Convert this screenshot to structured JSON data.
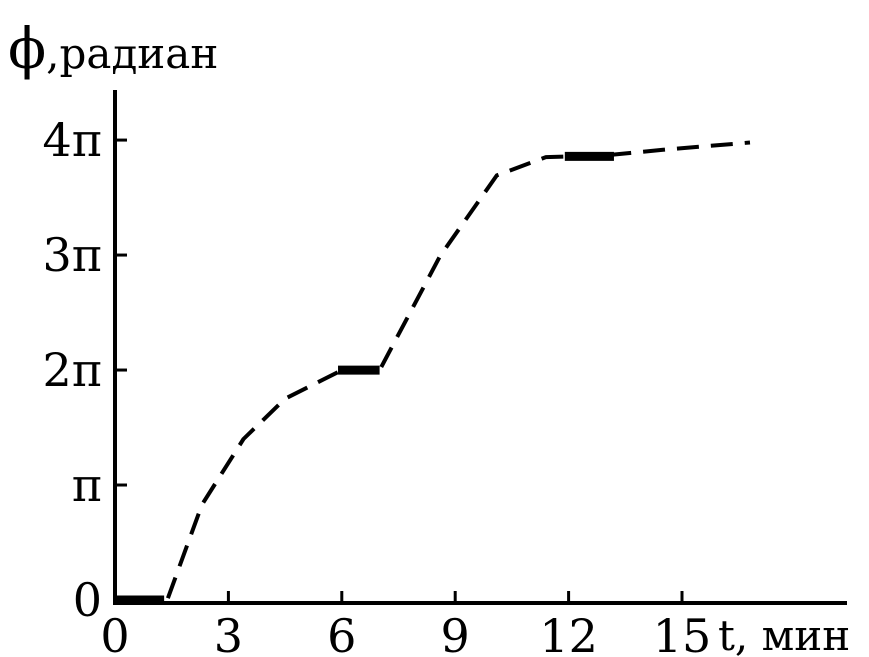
{
  "chart_data": {
    "type": "line",
    "ylabel_symbol": "ϕ",
    "ylabel_unit": ",радиан",
    "xlabel": "t, мин",
    "xlim": [
      0,
      19
    ],
    "ylim": [
      0,
      14.4
    ],
    "grid": false,
    "x_ticks": [
      {
        "value": 0,
        "label": "0"
      },
      {
        "value": 3,
        "label": "3"
      },
      {
        "value": 6,
        "label": "6"
      },
      {
        "value": 9,
        "label": "9"
      },
      {
        "value": 12,
        "label": "12"
      },
      {
        "value": 15,
        "label": "15"
      }
    ],
    "y_ticks": [
      {
        "value": 0,
        "label": "0"
      },
      {
        "value": 3.1416,
        "label": "π"
      },
      {
        "value": 6.2832,
        "label": "2π"
      },
      {
        "value": 9.4248,
        "label": "3π"
      },
      {
        "value": 12.5664,
        "label": "4π"
      }
    ],
    "series": [
      {
        "style": "dashed",
        "color": "#000000",
        "x": [
          1.4,
          2.3,
          3.4,
          4.5,
          6.0,
          7.0,
          8.6,
          10.1,
          11.4,
          13.0,
          14.5,
          16.8
        ],
        "y": [
          0.05,
          2.6,
          4.4,
          5.5,
          6.28,
          6.28,
          9.4,
          11.6,
          12.1,
          12.15,
          12.3,
          12.5
        ]
      }
    ],
    "plateaus": [
      {
        "x": [
          0,
          1.3
        ],
        "y": 0.0
      },
      {
        "x": [
          5.9,
          7.0
        ],
        "y": 6.28
      },
      {
        "x": [
          11.9,
          13.2
        ],
        "y": 12.12
      }
    ]
  }
}
